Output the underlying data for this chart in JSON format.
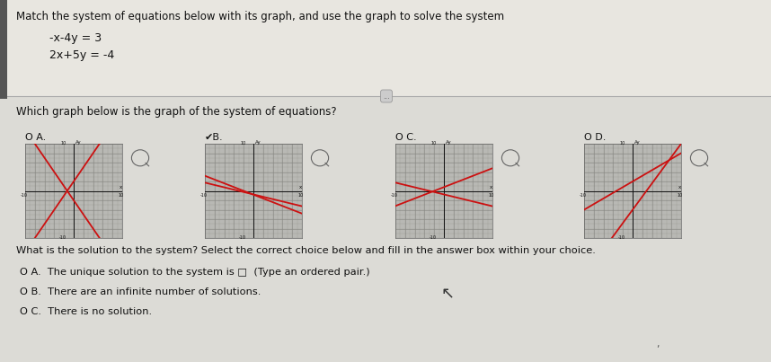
{
  "title": "Match the system of equations below with its graph, and use the graph to solve the system",
  "eq1": "-x-4y = 3",
  "eq2": "2x+5y = -4",
  "q1": "Which graph below is the graph of the system of equations?",
  "q2": "What is the solution to the system? Select the correct choice below and fill in the answer box within your choice.",
  "graph_labels": [
    "O A.",
    "✔B.",
    "O C.",
    "O D."
  ],
  "ans_a": "O A.  The unique solution to the system is □  (Type an ordered pair.)",
  "ans_b": "O B.  There are an infinite number of solutions.",
  "ans_c": "O C.  There is no solution.",
  "bg_top": "#e8e6e0",
  "bg_bot": "#dcdbd6",
  "line_color": "#cc1111",
  "graph_bg": "#b0b0b0",
  "sep_line_color": "#aaaaaa",
  "cursor_text": "↖",
  "dots_text": "...",
  "graph_A_lines": [
    [
      1.8,
      2.5,
      -1.8,
      -2.5
    ],
    [
      -1.8,
      -2.5,
      1.8,
      2.5
    ]
  ],
  "graph_B_lines": [
    [
      -0.25,
      -0.75,
      -0.4,
      -0.8
    ]
  ],
  "graph_C_lines": [
    [
      -0.25,
      -0.75,
      0.4,
      0.8
    ]
  ],
  "graph_D_lines": [
    [
      1.5,
      -3.0,
      0.6,
      2.0
    ]
  ]
}
